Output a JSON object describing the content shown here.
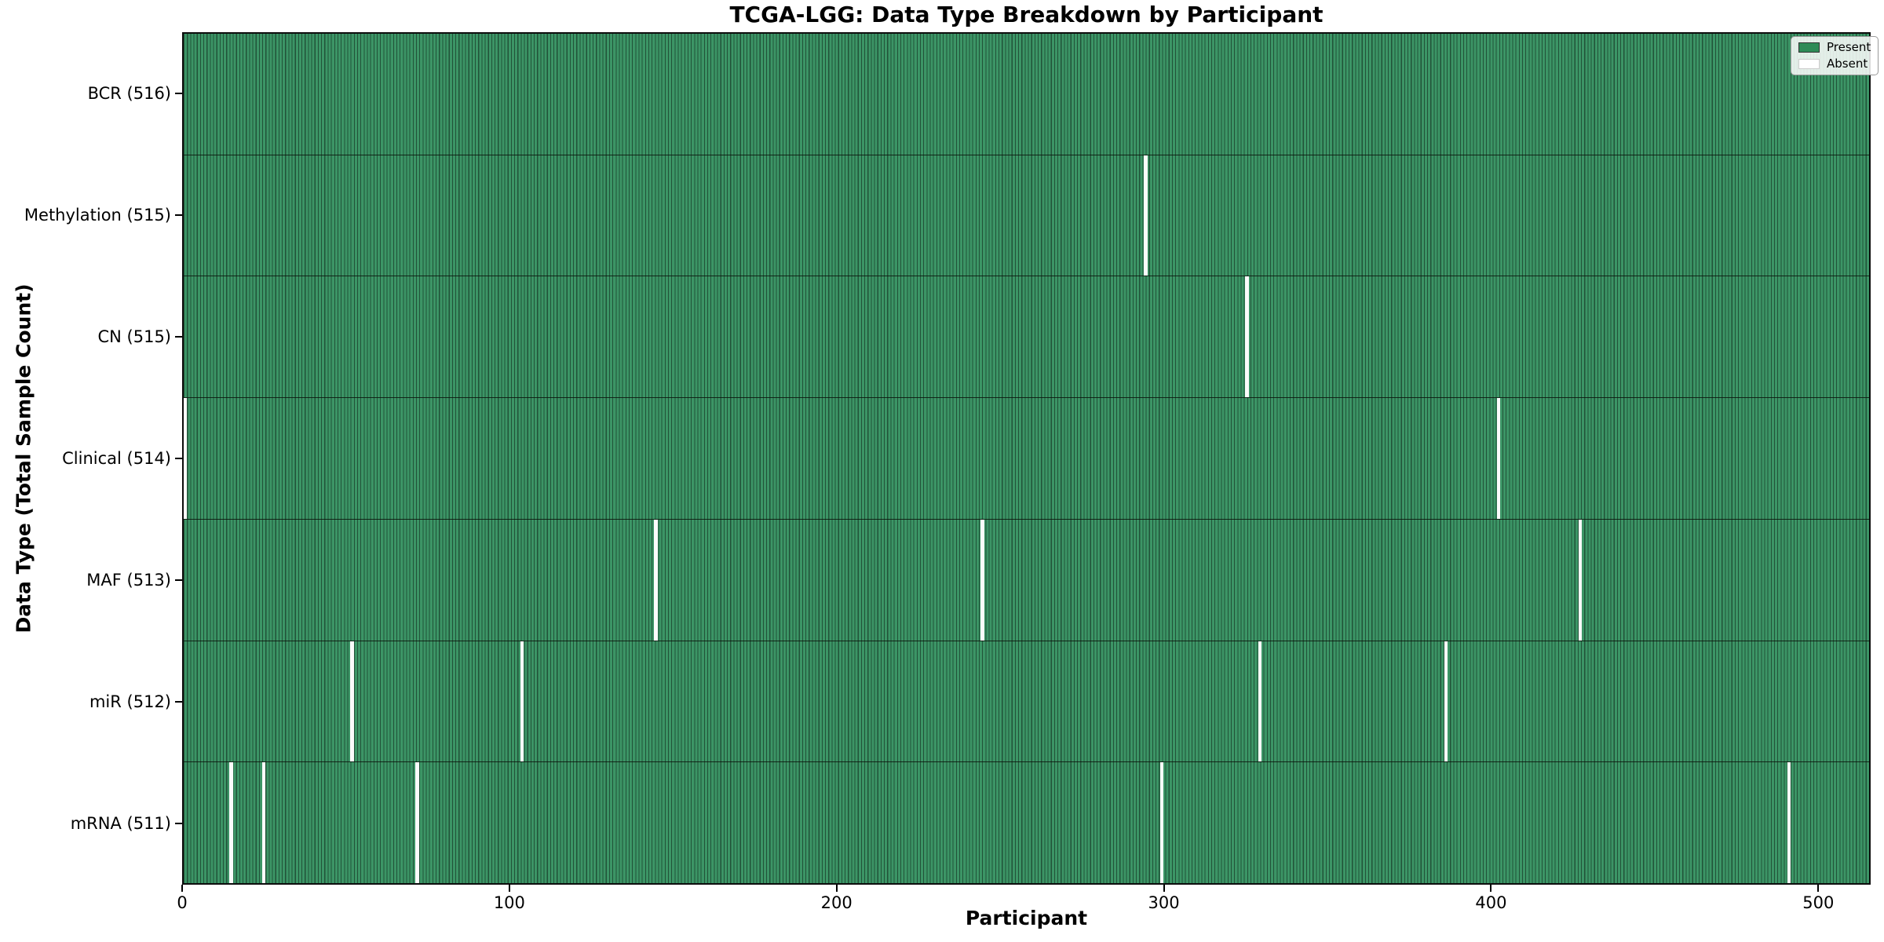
{
  "chart_data": {
    "type": "heatmap",
    "title": "TCGA-LGG: Data Type Breakdown by Participant",
    "xlabel": "Participant",
    "ylabel": "Data Type (Total Sample Count)",
    "x_ticks": [
      0,
      100,
      200,
      300,
      400,
      500
    ],
    "x_max": 516,
    "total_participants": 516,
    "grid": false,
    "legend_position": "upper right",
    "legend": [
      {
        "label": "Present",
        "color": "#2e8b57",
        "border": "#333333"
      },
      {
        "label": "Absent",
        "color": "#ffffff",
        "border": "#cccccc"
      }
    ],
    "rows": [
      {
        "label": "BCR (516)",
        "data_type": "BCR",
        "present_count": 516,
        "absent_participants": []
      },
      {
        "label": "Methylation (515)",
        "data_type": "Methylation",
        "present_count": 515,
        "absent_participants": [
          294
        ]
      },
      {
        "label": "CN (515)",
        "data_type": "CN",
        "present_count": 515,
        "absent_participants": [
          325
        ]
      },
      {
        "label": "Clinical (514)",
        "data_type": "Clinical",
        "present_count": 514,
        "absent_participants": [
          0,
          402
        ]
      },
      {
        "label": "MAF (513)",
        "data_type": "MAF",
        "present_count": 513,
        "absent_participants": [
          144,
          244,
          427
        ]
      },
      {
        "label": "miR (512)",
        "data_type": "miR",
        "present_count": 512,
        "absent_participants": [
          51,
          103,
          329,
          386
        ]
      },
      {
        "label": "mRNA (511)",
        "data_type": "mRNA",
        "present_count": 511,
        "absent_participants": [
          14,
          24,
          71,
          299,
          491
        ]
      }
    ],
    "colors": {
      "present_fill": "#3c9566",
      "bar_edge": "#1c4a30",
      "absent": "#fbfbfb",
      "row_separator": "#141c16"
    }
  }
}
